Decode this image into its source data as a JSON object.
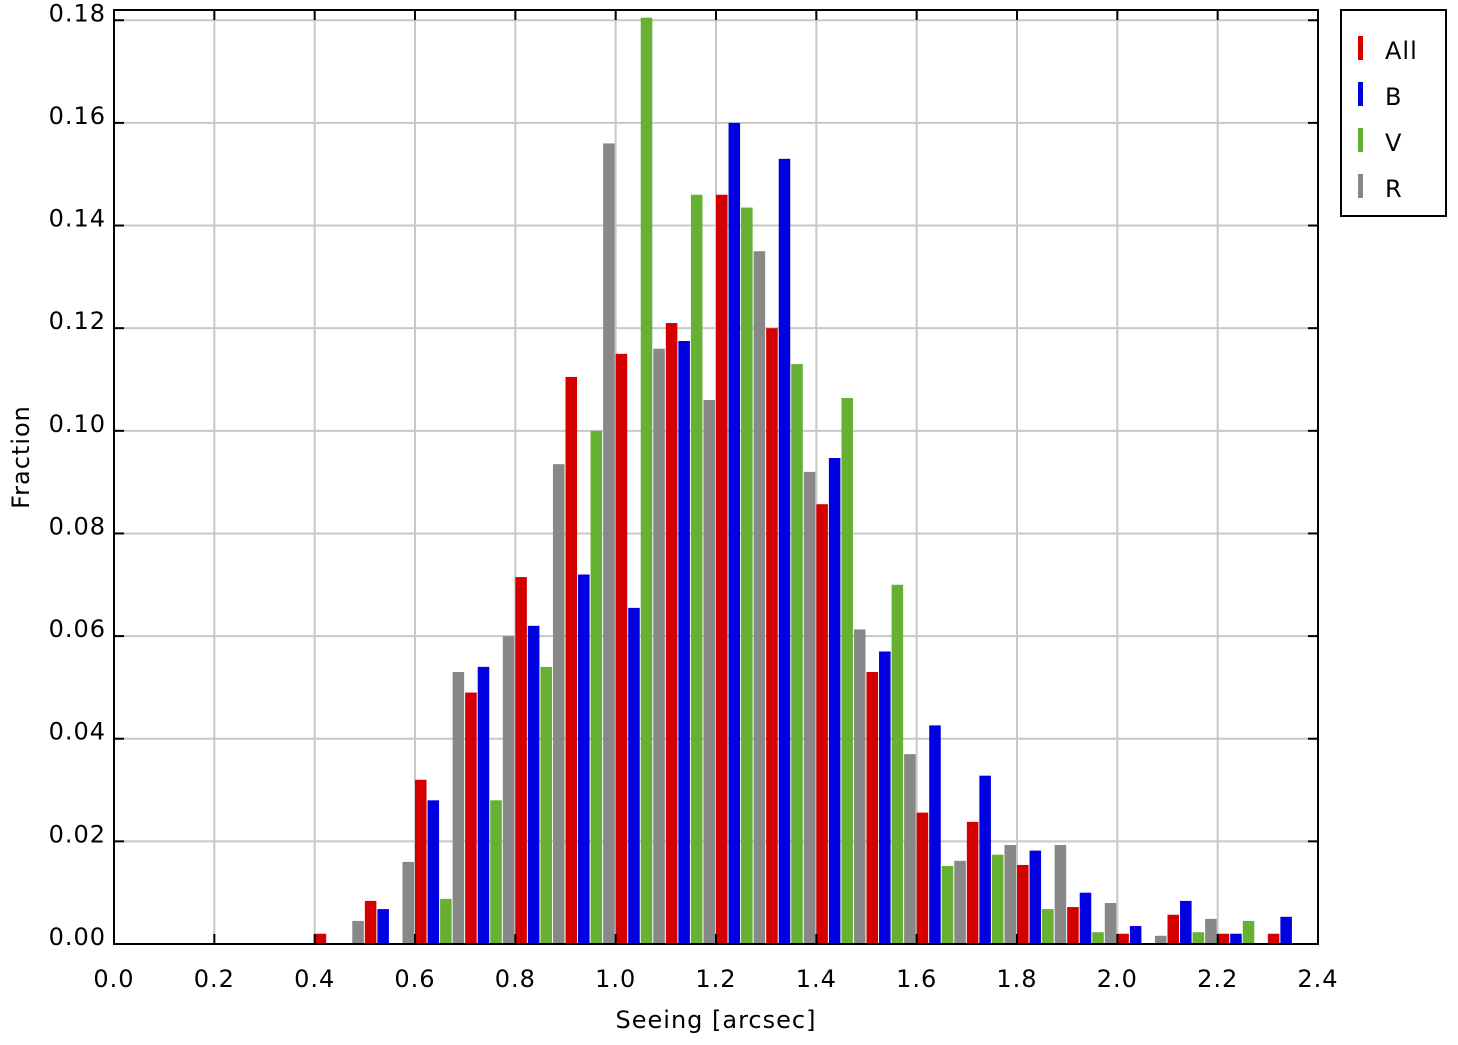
{
  "chart_data": {
    "type": "histogram",
    "xlabel": "Seeing [arcsec]",
    "ylabel": "Fraction",
    "bins": [
      0.4,
      0.5,
      0.6,
      0.7,
      0.8,
      0.9,
      1.0,
      1.1,
      1.2,
      1.3,
      1.4,
      1.5,
      1.6,
      1.7,
      1.8,
      1.9,
      2.0,
      2.1,
      2.2,
      2.3,
      2.4
    ],
    "series": [
      {
        "name": "All",
        "color": "#d40000",
        "values": [
          0.002,
          0.0084,
          0.032,
          0.049,
          0.0715,
          0.1105,
          0.115,
          0.121,
          0.146,
          0.12,
          0.0857,
          0.053,
          0.0256,
          0.0238,
          0.0154,
          0.0072,
          0.002,
          0.0057,
          0.002,
          0.002
        ]
      },
      {
        "name": "B",
        "color": "#0000e0",
        "values": [
          0,
          0.0068,
          0.028,
          0.054,
          0.062,
          0.072,
          0.0655,
          0.1175,
          0.16,
          0.153,
          0.0947,
          0.057,
          0.0426,
          0.0328,
          0.0182,
          0.01,
          0.0035,
          0.0084,
          0.002,
          0.0053
        ]
      },
      {
        "name": "V",
        "color": "#66b032",
        "values": [
          0,
          0,
          0.0088,
          0.028,
          0.054,
          0.1,
          0.1805,
          0.146,
          0.1435,
          0.113,
          0.1064,
          0.07,
          0.0152,
          0.0174,
          0.0068,
          0.0023,
          0,
          0.0023,
          0.0045,
          0
        ]
      },
      {
        "name": "R",
        "color": "#888888",
        "values": [
          0.0045,
          0.016,
          0.053,
          0.06,
          0.0935,
          0.156,
          0.116,
          0.106,
          0.135,
          0.092,
          0.0613,
          0.037,
          0.0162,
          0.0193,
          0.0193,
          0.008,
          0.0016,
          0.0049,
          0,
          0
        ]
      }
    ],
    "xlim": [
      0,
      2.4
    ],
    "xticks": [
      {
        "value": 0,
        "label": "0.0"
      },
      {
        "value": 0.2,
        "label": "0.2"
      },
      {
        "value": 0.4,
        "label": "0.4"
      },
      {
        "value": 0.6,
        "label": "0.6"
      },
      {
        "value": 0.8,
        "label": "0.8"
      },
      {
        "value": 1.0,
        "label": "1.0"
      },
      {
        "value": 1.2,
        "label": "1.2"
      },
      {
        "value": 1.4,
        "label": "1.4"
      },
      {
        "value": 1.6,
        "label": "1.6"
      },
      {
        "value": 1.8,
        "label": "1.8"
      },
      {
        "value": 2.0,
        "label": "2.0"
      },
      {
        "value": 2.2,
        "label": "2.2"
      },
      {
        "value": 2.4,
        "label": "2.4"
      }
    ],
    "ylim": [
      0,
      0.182
    ],
    "yticks": [
      {
        "value": 0,
        "label": "0.00"
      },
      {
        "value": 0.02,
        "label": "0.02"
      },
      {
        "value": 0.04,
        "label": "0.04"
      },
      {
        "value": 0.06,
        "label": "0.06"
      },
      {
        "value": 0.08,
        "label": "0.08"
      },
      {
        "value": 0.1,
        "label": "0.10"
      },
      {
        "value": 0.12,
        "label": "0.12"
      },
      {
        "value": 0.14,
        "label": "0.14"
      },
      {
        "value": 0.16,
        "label": "0.16"
      },
      {
        "value": 0.18,
        "label": "0.18"
      }
    ],
    "grid": true,
    "legend": "outside-upper-right"
  }
}
